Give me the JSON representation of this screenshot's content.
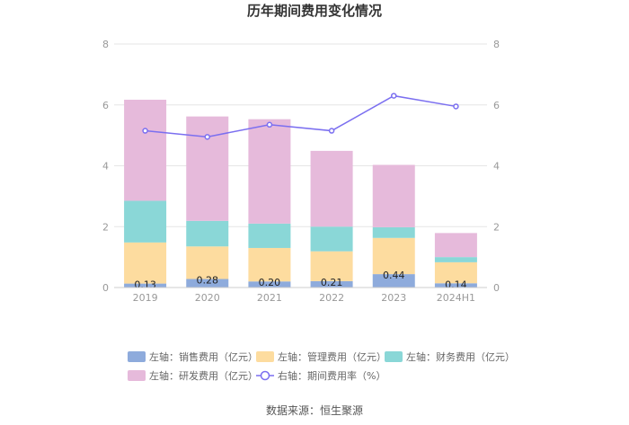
{
  "chart_data": {
    "type": "bar",
    "stacked": true,
    "title": "历年期间费用变化情况",
    "categories": [
      "2019",
      "2020",
      "2021",
      "2022",
      "2023",
      "2024H1"
    ],
    "left_axis": {
      "min": 0,
      "max": 8,
      "ticks": [
        "0",
        "2",
        "4",
        "6",
        "8"
      ]
    },
    "right_axis": {
      "min": 0,
      "max": 8,
      "ticks": [
        "0",
        "2",
        "4",
        "6",
        "8"
      ]
    },
    "series": [
      {
        "name": "左轴：销售费用（亿元）",
        "color": "#8eabdc",
        "values": [
          0.13,
          0.28,
          0.2,
          0.21,
          0.44,
          0.14
        ],
        "labels": [
          "0.13",
          "0.28",
          "0.20",
          "0.21",
          "0.44",
          "0.14"
        ]
      },
      {
        "name": "左轴：管理费用（亿元）",
        "color": "#fddc9f",
        "values": [
          1.35,
          1.07,
          1.1,
          0.98,
          1.19,
          0.69
        ]
      },
      {
        "name": "左轴：财务费用（亿元）",
        "color": "#8ad7d7",
        "values": [
          1.37,
          0.84,
          0.8,
          0.81,
          0.35,
          0.17
        ]
      },
      {
        "name": "左轴：研发费用（亿元）",
        "color": "#e6badb",
        "values": [
          3.32,
          3.43,
          3.43,
          2.49,
          2.05,
          0.79
        ]
      }
    ],
    "line": {
      "name": "右轴：期间费用率（%）",
      "color": "#7b6ff0",
      "values": [
        5.15,
        4.95,
        5.35,
        5.15,
        6.3,
        5.95
      ]
    },
    "source": "数据来源：恒生聚源"
  }
}
